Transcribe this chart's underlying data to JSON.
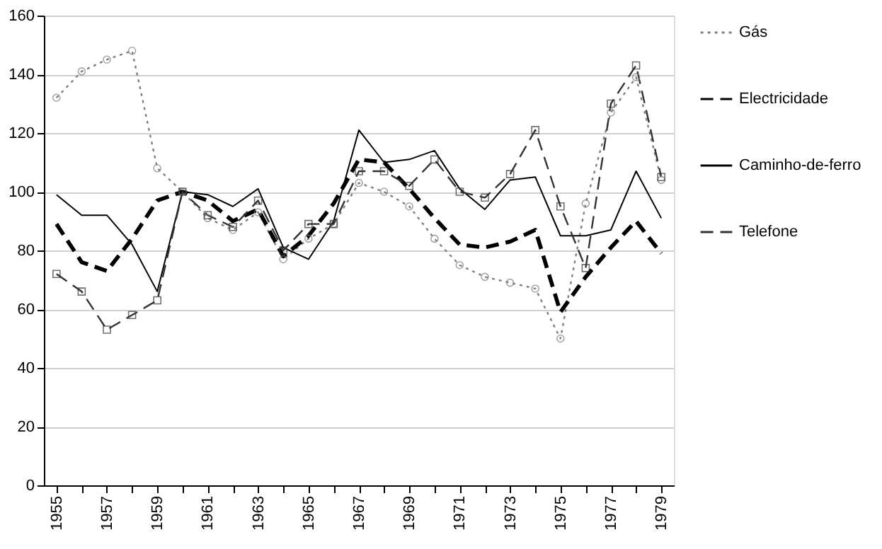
{
  "chart_data": {
    "type": "line",
    "categories": [
      "1955",
      null,
      "1957",
      null,
      "1959",
      null,
      "1961",
      null,
      "1963",
      null,
      "1965",
      null,
      "1967",
      null,
      "1969",
      null,
      "1971",
      null,
      "1973",
      null,
      "1975",
      null,
      "1977",
      null,
      "1979"
    ],
    "series": [
      {
        "name": "Gás",
        "color": "#808080",
        "line_style": "dotted",
        "marker": "circle",
        "values": [
          132,
          141,
          145,
          148,
          108,
          100,
          91,
          87,
          93,
          77,
          84,
          89,
          103,
          100,
          95,
          84,
          75,
          71,
          69,
          67,
          50,
          96,
          127,
          139,
          104
        ]
      },
      {
        "name": "Electricidade",
        "color": "#000000",
        "line_style": "dashed",
        "marker": "none",
        "values": [
          89,
          76,
          73,
          84,
          97,
          100,
          97,
          90,
          94,
          78,
          85,
          96,
          111,
          110,
          101,
          91,
          82,
          81,
          83,
          87,
          59,
          71,
          81,
          90,
          79
        ]
      },
      {
        "name": "Caminho-de-ferro",
        "color": "#000000",
        "line_style": "solid",
        "marker": "none",
        "values": [
          99,
          92,
          92,
          82,
          66,
          100,
          99,
          95,
          101,
          81,
          77,
          90,
          121,
          110,
          111,
          114,
          101,
          94,
          104,
          105,
          85,
          85,
          87,
          107,
          91
        ]
      },
      {
        "name": "Telefone",
        "color": "#333333",
        "line_style": "dashed",
        "marker": "square",
        "values": [
          72,
          66,
          53,
          58,
          63,
          100,
          92,
          88,
          97,
          80,
          89,
          89,
          107,
          107,
          102,
          111,
          100,
          98,
          106,
          121,
          95,
          74,
          130,
          143,
          105
        ]
      }
    ],
    "ylim": [
      0,
      160
    ],
    "yticks": [
      0,
      20,
      40,
      60,
      80,
      100,
      120,
      140,
      160
    ],
    "grid": "y",
    "legend": "right"
  }
}
